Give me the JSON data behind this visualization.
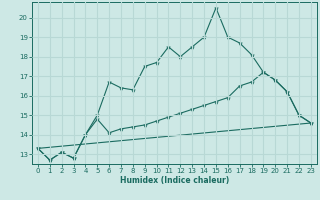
{
  "xlabel": "Humidex (Indice chaleur)",
  "bg_color": "#cde8e5",
  "grid_color": "#b8d8d5",
  "line_color": "#1a6b60",
  "xlim": [
    -0.5,
    23.5
  ],
  "ylim": [
    12.5,
    20.8
  ],
  "xticks": [
    0,
    1,
    2,
    3,
    4,
    5,
    6,
    7,
    8,
    9,
    10,
    11,
    12,
    13,
    14,
    15,
    16,
    17,
    18,
    19,
    20,
    21,
    22,
    23
  ],
  "yticks": [
    13,
    14,
    15,
    16,
    17,
    18,
    19,
    20
  ],
  "series1_x": [
    0,
    1,
    2,
    3,
    4,
    5,
    6,
    7,
    8,
    9,
    10,
    11,
    12,
    13,
    14,
    15,
    16,
    17,
    18,
    19,
    20,
    21,
    22,
    23
  ],
  "series1_y": [
    13.3,
    12.7,
    13.1,
    12.8,
    14.0,
    15.0,
    16.7,
    16.4,
    16.3,
    17.5,
    17.7,
    18.5,
    18.0,
    18.5,
    19.0,
    20.5,
    19.0,
    18.7,
    18.1,
    17.2,
    16.8,
    16.2,
    15.0,
    14.6
  ],
  "series2_x": [
    0,
    1,
    2,
    3,
    4,
    5,
    6,
    7,
    8,
    9,
    10,
    11,
    12,
    13,
    14,
    15,
    16,
    17,
    18,
    19,
    20,
    21,
    22,
    23
  ],
  "series2_y": [
    13.3,
    12.7,
    13.1,
    12.8,
    14.0,
    14.8,
    14.1,
    14.3,
    14.4,
    14.5,
    14.7,
    14.9,
    15.1,
    15.3,
    15.5,
    15.7,
    15.9,
    16.5,
    16.7,
    17.2,
    16.8,
    16.2,
    15.0,
    14.6
  ],
  "series3_x": [
    0,
    23
  ],
  "series3_y": [
    13.3,
    14.6
  ]
}
